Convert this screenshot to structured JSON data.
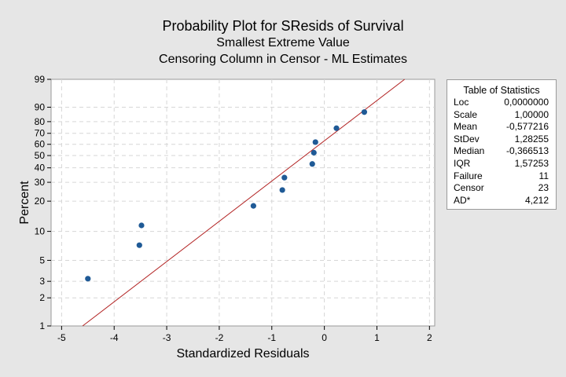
{
  "titles": {
    "main": "Probability Plot for SResids of Survival",
    "sub1": "Smallest Extreme Value",
    "sub2": "Censoring Column in Censor - ML Estimates"
  },
  "stats_table": {
    "title": "Table of Statistics",
    "rows": [
      {
        "label": "Loc",
        "value": "0,0000000"
      },
      {
        "label": "Scale",
        "value": "1,00000"
      },
      {
        "label": "Mean",
        "value": "-0,577216"
      },
      {
        "label": "StDev",
        "value": "1,28255"
      },
      {
        "label": "Median",
        "value": "-0,366513"
      },
      {
        "label": "IQR",
        "value": "1,57253"
      },
      {
        "label": "Failure",
        "value": "11"
      },
      {
        "label": "Censor",
        "value": "23"
      },
      {
        "label": "AD*",
        "value": "4,212"
      }
    ]
  },
  "colors": {
    "point": "#1f5a96",
    "fit_line": "#b22222",
    "grid": "#d6d6d6",
    "background": "#e6e6e6",
    "plot_area": "#ffffff"
  },
  "chart_data": {
    "type": "scatter",
    "title": "Probability Plot for SResids of Survival",
    "subtitle": [
      "Smallest Extreme Value",
      "Censoring Column in Censor - ML Estimates"
    ],
    "xlabel": "Standardized Residuals",
    "ylabel": "Percent",
    "xlim": [
      -5.2,
      2.1
    ],
    "ylim": [
      1,
      99
    ],
    "y_scale": "smallest-extreme-value probability",
    "x_ticks": [
      -5,
      -4,
      -3,
      -2,
      -1,
      0,
      1,
      2
    ],
    "y_ticks": [
      1,
      2,
      3,
      5,
      10,
      20,
      30,
      40,
      50,
      60,
      70,
      80,
      90,
      99
    ],
    "grid": true,
    "fit_line": {
      "loc": 0.0,
      "scale": 1.0
    },
    "points": [
      {
        "x": -4.5,
        "y": 3.2
      },
      {
        "x": -3.52,
        "y": 7.2
      },
      {
        "x": -3.48,
        "y": 11.5
      },
      {
        "x": -1.35,
        "y": 18.0
      },
      {
        "x": -0.8,
        "y": 25.5
      },
      {
        "x": -0.76,
        "y": 33.0
      },
      {
        "x": -0.23,
        "y": 43.0
      },
      {
        "x": -0.2,
        "y": 52.5
      },
      {
        "x": -0.17,
        "y": 62.0
      },
      {
        "x": 0.23,
        "y": 74.5
      },
      {
        "x": 0.76,
        "y": 87.0
      }
    ]
  }
}
